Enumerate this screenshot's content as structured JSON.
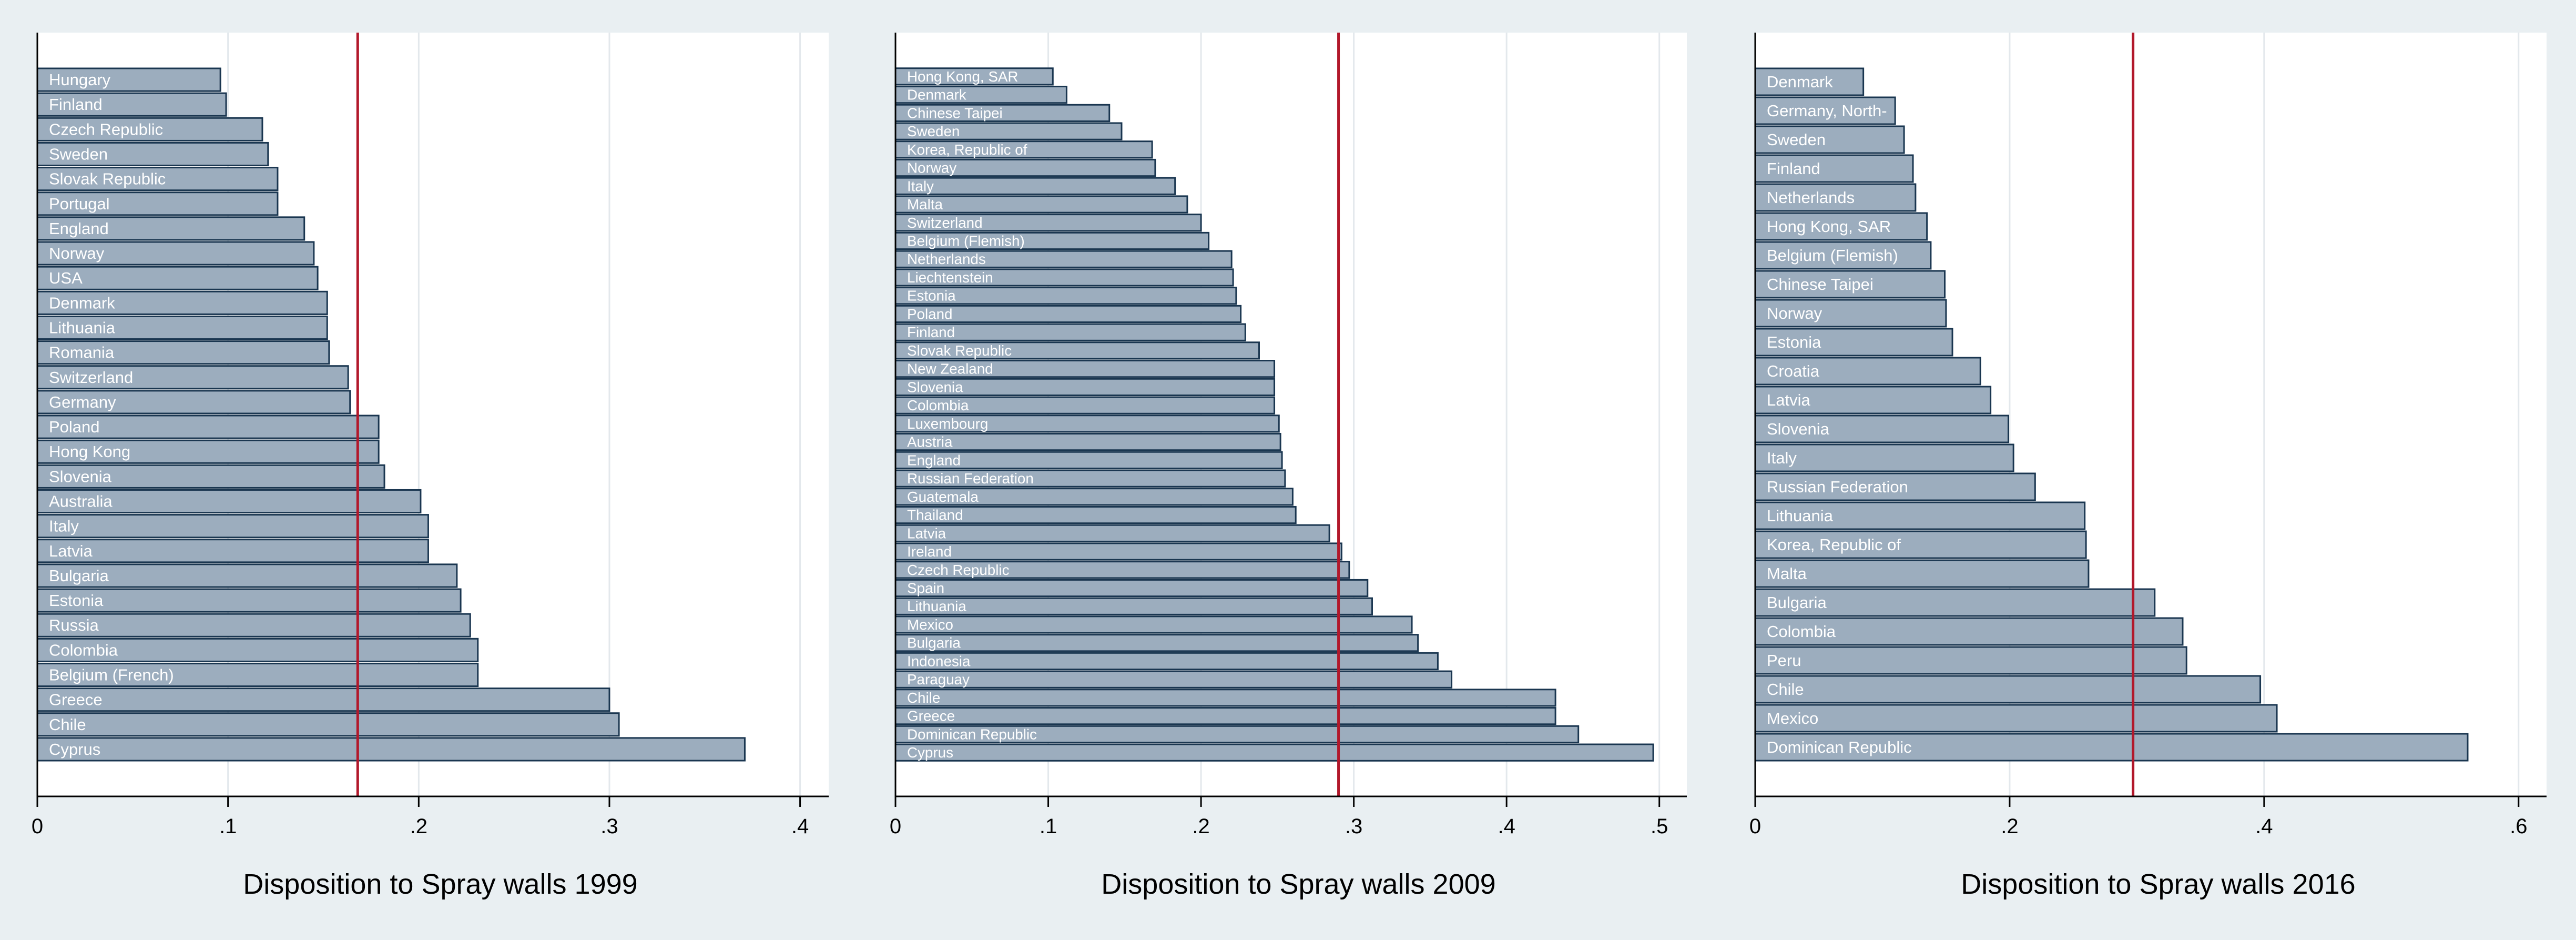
{
  "colors": {
    "background": "#e9eff2",
    "plot_bg": "#ffffff",
    "bar_fill": "#9cadbe",
    "bar_stroke": "#1a3650",
    "ref_line": "#b2182b",
    "grid": "#e3e8ec",
    "bar_label": "#ffffff"
  },
  "chart_data": [
    {
      "type": "bar",
      "orientation": "horizontal",
      "xlabel": "Disposition to Spray walls 1999",
      "xlim": [
        0,
        0.415
      ],
      "xticks": [
        0,
        0.1,
        0.2,
        0.3,
        0.4
      ],
      "xtick_labels": [
        "0",
        ".1",
        ".2",
        ".3",
        ".4"
      ],
      "grid": true,
      "reference_line": 0.168,
      "categories": [
        "Hungary",
        "Finland",
        "Czech Republic",
        "Sweden",
        "Slovak Republic",
        "Portugal",
        "England",
        "Norway",
        "USA",
        "Denmark",
        "Lithuania",
        "Romania",
        "Switzerland",
        "Germany",
        "Poland",
        "Hong Kong",
        "Slovenia",
        "Australia",
        "Italy",
        "Latvia",
        "Bulgaria",
        "Estonia",
        "Russia",
        "Colombia",
        "Belgium (French)",
        "Greece",
        "Chile",
        "Cyprus"
      ],
      "values": [
        0.096,
        0.099,
        0.118,
        0.121,
        0.126,
        0.126,
        0.14,
        0.145,
        0.147,
        0.152,
        0.152,
        0.153,
        0.163,
        0.164,
        0.179,
        0.179,
        0.182,
        0.201,
        0.205,
        0.205,
        0.22,
        0.222,
        0.227,
        0.231,
        0.231,
        0.3,
        0.305,
        0.371
      ]
    },
    {
      "type": "bar",
      "orientation": "horizontal",
      "xlabel": "Disposition to Spray walls 2009",
      "xlim": [
        0,
        0.518
      ],
      "xticks": [
        0,
        0.1,
        0.2,
        0.3,
        0.4,
        0.5
      ],
      "xtick_labels": [
        "0",
        ".1",
        ".2",
        ".3",
        ".4",
        ".5"
      ],
      "grid": true,
      "reference_line": 0.29,
      "categories": [
        "Hong Kong, SAR",
        "Denmark",
        "Chinese Taipei",
        "Sweden",
        "Korea, Republic of",
        "Norway",
        "Italy",
        "Malta",
        "Switzerland",
        "Belgium (Flemish)",
        "Netherlands",
        "Liechtenstein",
        "Estonia",
        "Poland",
        "Finland",
        "Slovak Republic",
        "New Zealand",
        "Slovenia",
        "Colombia",
        "Luxembourg",
        "Austria",
        "England",
        "Russian Federation",
        "Guatemala",
        "Thailand",
        "Latvia",
        "Ireland",
        "Czech Republic",
        "Spain",
        "Lithuania",
        "Mexico",
        "Bulgaria",
        "Indonesia",
        "Paraguay",
        "Chile",
        "Greece",
        "Dominican Republic",
        "Cyprus"
      ],
      "values": [
        0.103,
        0.112,
        0.14,
        0.148,
        0.168,
        0.17,
        0.183,
        0.191,
        0.2,
        0.205,
        0.22,
        0.221,
        0.223,
        0.226,
        0.229,
        0.238,
        0.248,
        0.248,
        0.248,
        0.251,
        0.252,
        0.253,
        0.255,
        0.26,
        0.262,
        0.284,
        0.292,
        0.297,
        0.309,
        0.312,
        0.338,
        0.342,
        0.355,
        0.364,
        0.432,
        0.432,
        0.447,
        0.496
      ]
    },
    {
      "type": "bar",
      "orientation": "horizontal",
      "xlabel": "Disposition to Spray walls 2016",
      "xlim": [
        0,
        0.622
      ],
      "xticks": [
        0,
        0.2,
        0.4,
        0.6
      ],
      "xtick_labels": [
        "0",
        ".2",
        ".4",
        ".6"
      ],
      "grid": true,
      "reference_line": 0.297,
      "categories": [
        "Denmark",
        "Germany, North-",
        "Sweden",
        "Finland",
        "Netherlands",
        "Hong Kong, SAR",
        "Belgium (Flemish)",
        "Chinese Taipei",
        "Norway",
        "Estonia",
        "Croatia",
        "Latvia",
        "Slovenia",
        "Italy",
        "Russian Federation",
        "Lithuania",
        "Korea, Republic of",
        "Malta",
        "Bulgaria",
        "Colombia",
        "Peru",
        "Chile",
        "Mexico",
        "Dominican Republic"
      ],
      "values": [
        0.085,
        0.11,
        0.117,
        0.124,
        0.126,
        0.135,
        0.138,
        0.149,
        0.15,
        0.155,
        0.177,
        0.185,
        0.199,
        0.203,
        0.22,
        0.259,
        0.26,
        0.262,
        0.314,
        0.336,
        0.339,
        0.397,
        0.41,
        0.56
      ]
    }
  ]
}
